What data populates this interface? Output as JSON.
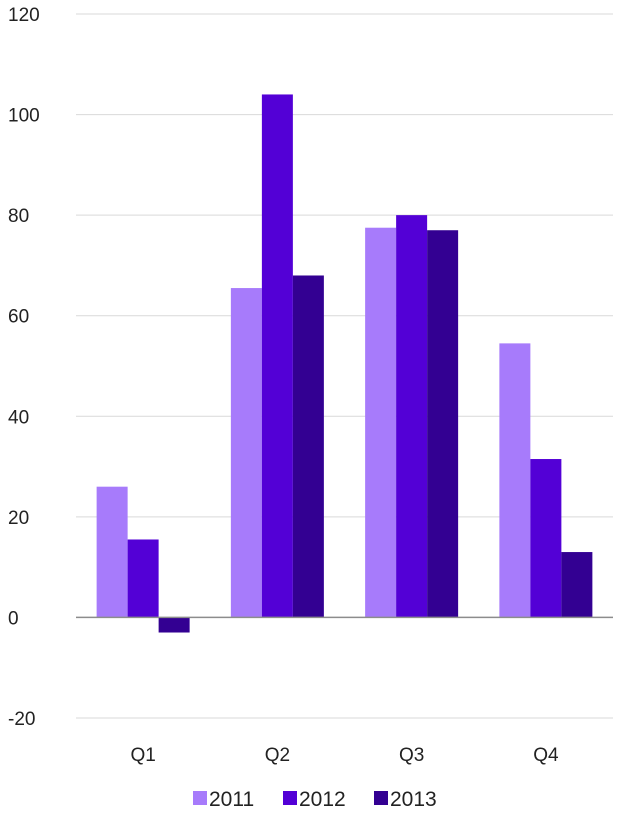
{
  "chart_data": {
    "type": "bar",
    "categories": [
      "Q1",
      "Q2",
      "Q3",
      "Q4"
    ],
    "series": [
      {
        "name": "2011",
        "color": "#a77bfb",
        "values": [
          26,
          65.5,
          77.5,
          54.5
        ]
      },
      {
        "name": "2012",
        "color": "#5300d6",
        "values": [
          15.5,
          104,
          80,
          31.5
        ]
      },
      {
        "name": "2013",
        "color": "#330092",
        "values": [
          -3,
          68,
          77,
          13
        ]
      }
    ],
    "yticks": [
      "-20",
      "0",
      "20",
      "40",
      "60",
      "80",
      "100",
      "120"
    ],
    "ylim": [
      -20,
      120
    ],
    "grid": true,
    "legend_position": "bottom",
    "title": "",
    "xlabel": "",
    "ylabel": ""
  }
}
